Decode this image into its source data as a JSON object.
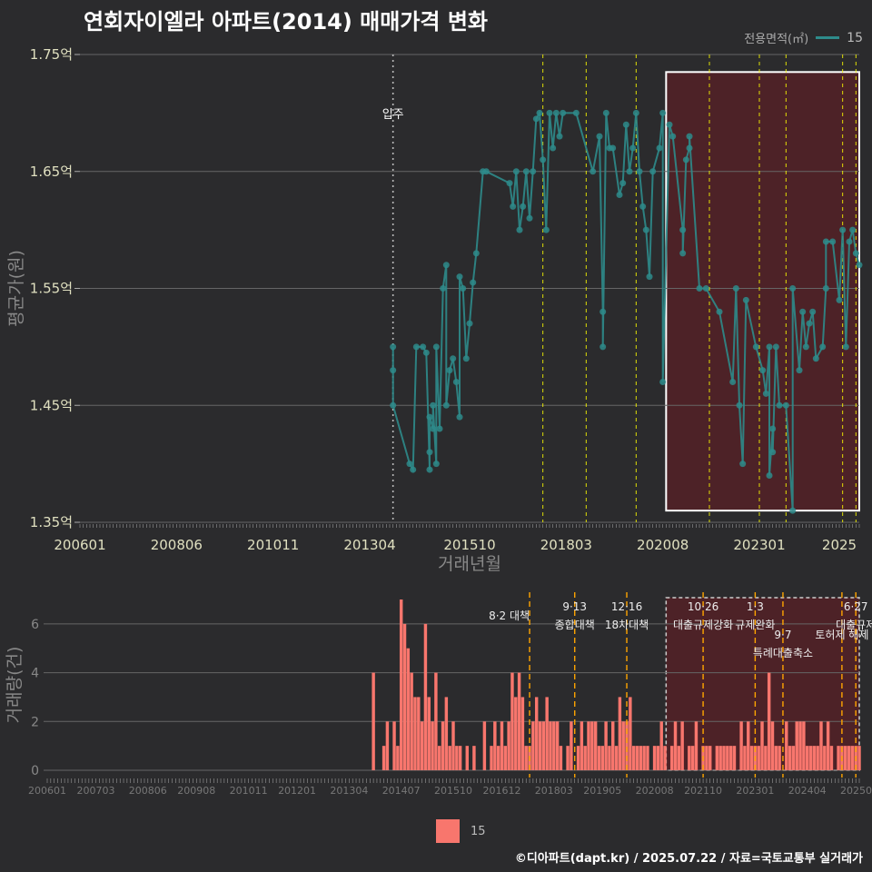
{
  "title": "연회자이엘라 아파트(2014) 매매가격 변화",
  "footer": "©디아파트(dapt.kr) / 2025.07.22 / 자료=국토교통부 실거래가",
  "legend_top": {
    "title": "전용면적(㎡)",
    "series": "15"
  },
  "legend_bottom": {
    "series": "15"
  },
  "colors": {
    "line": "#2e8b8b",
    "bar": "#f8766d",
    "highlight": "#5a2026",
    "vline": "#ffff00",
    "vline_bottom": "#ffa500"
  },
  "chart_data": [
    {
      "type": "line",
      "ylabel": "평균가(원)",
      "xlabel": "거래년월",
      "x_ticks": [
        "200601",
        "200806",
        "201011",
        "201304",
        "201510",
        "201803",
        "202008",
        "202301",
        "2025"
      ],
      "y_ticks": [
        "1.35억",
        "1.45억",
        "1.55억",
        "1.65억",
        "1.75억"
      ],
      "ylim": [
        1.35,
        1.75
      ],
      "xlim": [
        "2006-01",
        "2025-07"
      ],
      "annotations": [
        {
          "x": "2013-11",
          "label": "입주"
        }
      ],
      "policy_lines": [
        "2017-08",
        "2018-09",
        "2019-12",
        "2021-10",
        "2023-01",
        "2023-09",
        "2025-02",
        "2025-06"
      ],
      "highlight": {
        "from": "2020-09",
        "to": "2025-07",
        "ymin": 1.36,
        "ymax": 1.735
      },
      "series": [
        {
          "name": "15",
          "points": [
            [
              "2013-11",
              1.48
            ],
            [
              "2013-11",
              1.5
            ],
            [
              "2013-11",
              1.45
            ],
            [
              "2014-04",
              1.4
            ],
            [
              "2014-05",
              1.395
            ],
            [
              "2014-06",
              1.5
            ],
            [
              "2014-08",
              1.5
            ],
            [
              "2014-09",
              1.495
            ],
            [
              "2014-10",
              1.395
            ],
            [
              "2014-10",
              1.41
            ],
            [
              "2014-10",
              1.44
            ],
            [
              "2014-11",
              1.43
            ],
            [
              "2014-11",
              1.45
            ],
            [
              "2014-12",
              1.4
            ],
            [
              "2014-12",
              1.5
            ],
            [
              "2015-01",
              1.43
            ],
            [
              "2015-02",
              1.55
            ],
            [
              "2015-03",
              1.57
            ],
            [
              "2015-03",
              1.45
            ],
            [
              "2015-04",
              1.48
            ],
            [
              "2015-05",
              1.49
            ],
            [
              "2015-06",
              1.47
            ],
            [
              "2015-07",
              1.44
            ],
            [
              "2015-07",
              1.56
            ],
            [
              "2015-08",
              1.55
            ],
            [
              "2015-09",
              1.49
            ],
            [
              "2015-10",
              1.52
            ],
            [
              "2015-11",
              1.555
            ],
            [
              "2015-12",
              1.58
            ],
            [
              "2016-02",
              1.65
            ],
            [
              "2016-03",
              1.65
            ],
            [
              "2016-10",
              1.64
            ],
            [
              "2016-11",
              1.62
            ],
            [
              "2016-12",
              1.65
            ],
            [
              "2017-01",
              1.6
            ],
            [
              "2017-02",
              1.62
            ],
            [
              "2017-03",
              1.65
            ],
            [
              "2017-04",
              1.61
            ],
            [
              "2017-05",
              1.65
            ],
            [
              "2017-06",
              1.695
            ],
            [
              "2017-07",
              1.7
            ],
            [
              "2017-08",
              1.66
            ],
            [
              "2017-09",
              1.6
            ],
            [
              "2017-10",
              1.7
            ],
            [
              "2017-11",
              1.67
            ],
            [
              "2017-12",
              1.7
            ],
            [
              "2018-01",
              1.68
            ],
            [
              "2018-02",
              1.7
            ],
            [
              "2018-06",
              1.7
            ],
            [
              "2018-11",
              1.65
            ],
            [
              "2019-01",
              1.68
            ],
            [
              "2019-02",
              1.53
            ],
            [
              "2019-02",
              1.5
            ],
            [
              "2019-03",
              1.7
            ],
            [
              "2019-04",
              1.67
            ],
            [
              "2019-05",
              1.67
            ],
            [
              "2019-07",
              1.63
            ],
            [
              "2019-08",
              1.64
            ],
            [
              "2019-09",
              1.69
            ],
            [
              "2019-10",
              1.65
            ],
            [
              "2019-11",
              1.67
            ],
            [
              "2019-12",
              1.7
            ],
            [
              "2020-01",
              1.65
            ],
            [
              "2020-02",
              1.62
            ],
            [
              "2020-03",
              1.6
            ],
            [
              "2020-04",
              1.56
            ],
            [
              "2020-05",
              1.65
            ],
            [
              "2020-07",
              1.67
            ],
            [
              "2020-08",
              1.7
            ],
            [
              "2020-08",
              1.47
            ],
            [
              "2020-10",
              1.69
            ],
            [
              "2020-11",
              1.68
            ],
            [
              "2021-02",
              1.6
            ],
            [
              "2021-02",
              1.58
            ],
            [
              "2021-03",
              1.66
            ],
            [
              "2021-04",
              1.67
            ],
            [
              "2021-04",
              1.68
            ],
            [
              "2021-07",
              1.55
            ],
            [
              "2021-09",
              1.55
            ],
            [
              "2022-01",
              1.53
            ],
            [
              "2022-05",
              1.47
            ],
            [
              "2022-06",
              1.55
            ],
            [
              "2022-07",
              1.45
            ],
            [
              "2022-08",
              1.4
            ],
            [
              "2022-09",
              1.54
            ],
            [
              "2022-12",
              1.5
            ],
            [
              "2023-02",
              1.48
            ],
            [
              "2023-03",
              1.46
            ],
            [
              "2023-04",
              1.5
            ],
            [
              "2023-04",
              1.39
            ],
            [
              "2023-05",
              1.43
            ],
            [
              "2023-05",
              1.41
            ],
            [
              "2023-06",
              1.5
            ],
            [
              "2023-07",
              1.45
            ],
            [
              "2023-09",
              1.45
            ],
            [
              "2023-11",
              1.36
            ],
            [
              "2023-11",
              1.55
            ],
            [
              "2024-01",
              1.48
            ],
            [
              "2024-02",
              1.53
            ],
            [
              "2024-03",
              1.5
            ],
            [
              "2024-04",
              1.52
            ],
            [
              "2024-05",
              1.53
            ],
            [
              "2024-06",
              1.49
            ],
            [
              "2024-08",
              1.5
            ],
            [
              "2024-09",
              1.55
            ],
            [
              "2024-09",
              1.59
            ],
            [
              "2024-11",
              1.59
            ],
            [
              "2025-01",
              1.54
            ],
            [
              "2025-02",
              1.6
            ],
            [
              "2025-03",
              1.5
            ],
            [
              "2025-04",
              1.59
            ],
            [
              "2025-05",
              1.6
            ],
            [
              "2025-06",
              1.58
            ],
            [
              "2025-07",
              1.57
            ]
          ]
        }
      ]
    },
    {
      "type": "bar",
      "ylabel": "거래량(건)",
      "x_ticks": [
        "200601",
        "200703",
        "200806",
        "200908",
        "201011",
        "201201",
        "201304",
        "201407",
        "201510",
        "201612",
        "201803",
        "201905",
        "202008",
        "202110",
        "202301",
        "202404",
        "202507"
      ],
      "y_ticks": [
        "0",
        "2",
        "4",
        "6"
      ],
      "ylim": [
        0,
        7
      ],
      "xlim": [
        "2006-01",
        "2025-07"
      ],
      "policy_lines": [
        {
          "x": "2017-08",
          "label": "8·2 대책"
        },
        {
          "x": "2018-09",
          "label": "9·13\n종합대책"
        },
        {
          "x": "2019-12",
          "label": "12·16\n18차대책"
        },
        {
          "x": "2021-10",
          "label": "10·26\n대출규제강화"
        },
        {
          "x": "2023-01",
          "label": "1·3\n규제완화"
        },
        {
          "x": "2023-09",
          "label": "9·7\n특례대출축소"
        },
        {
          "x": "2025-02",
          "label": "토허제 해제"
        },
        {
          "x": "2025-06",
          "label": "6·27\n대출규제"
        }
      ],
      "highlight": {
        "from": "2020-09",
        "to": "2025-07"
      },
      "series": [
        {
          "name": "15",
          "values": [
            [
              "2013-11",
              4
            ],
            [
              "2014-02",
              1
            ],
            [
              "2014-03",
              2
            ],
            [
              "2014-05",
              2
            ],
            [
              "2014-06",
              1
            ],
            [
              "2014-07",
              7
            ],
            [
              "2014-08",
              6
            ],
            [
              "2014-09",
              5
            ],
            [
              "2014-10",
              4
            ],
            [
              "2014-11",
              3
            ],
            [
              "2014-12",
              3
            ],
            [
              "2015-01",
              2
            ],
            [
              "2015-02",
              6
            ],
            [
              "2015-03",
              3
            ],
            [
              "2015-04",
              2
            ],
            [
              "2015-05",
              4
            ],
            [
              "2015-06",
              1
            ],
            [
              "2015-07",
              2
            ],
            [
              "2015-08",
              3
            ],
            [
              "2015-09",
              1
            ],
            [
              "2015-10",
              2
            ],
            [
              "2015-11",
              1
            ],
            [
              "2015-12",
              1
            ],
            [
              "2016-02",
              1
            ],
            [
              "2016-04",
              1
            ],
            [
              "2016-07",
              2
            ],
            [
              "2016-09",
              1
            ],
            [
              "2016-10",
              2
            ],
            [
              "2016-11",
              1
            ],
            [
              "2016-12",
              2
            ],
            [
              "2017-01",
              1
            ],
            [
              "2017-02",
              2
            ],
            [
              "2017-03",
              4
            ],
            [
              "2017-04",
              3
            ],
            [
              "2017-05",
              4
            ],
            [
              "2017-06",
              3
            ],
            [
              "2017-07",
              1
            ],
            [
              "2017-08",
              1
            ],
            [
              "2017-09",
              2
            ],
            [
              "2017-10",
              3
            ],
            [
              "2017-11",
              2
            ],
            [
              "2017-12",
              2
            ],
            [
              "2018-01",
              3
            ],
            [
              "2018-02",
              2
            ],
            [
              "2018-03",
              2
            ],
            [
              "2018-04",
              2
            ],
            [
              "2018-05",
              1
            ],
            [
              "2018-07",
              1
            ],
            [
              "2018-08",
              2
            ],
            [
              "2018-10",
              1
            ],
            [
              "2018-11",
              2
            ],
            [
              "2018-12",
              1
            ],
            [
              "2019-01",
              2
            ],
            [
              "2019-02",
              2
            ],
            [
              "2019-03",
              2
            ],
            [
              "2019-04",
              1
            ],
            [
              "2019-05",
              1
            ],
            [
              "2019-06",
              2
            ],
            [
              "2019-07",
              1
            ],
            [
              "2019-08",
              2
            ],
            [
              "2019-09",
              1
            ],
            [
              "2019-10",
              3
            ],
            [
              "2019-11",
              2
            ],
            [
              "2019-12",
              2
            ],
            [
              "2020-01",
              3
            ],
            [
              "2020-02",
              1
            ],
            [
              "2020-03",
              1
            ],
            [
              "2020-04",
              1
            ],
            [
              "2020-05",
              1
            ],
            [
              "2020-06",
              1
            ],
            [
              "2020-08",
              1
            ],
            [
              "2020-09",
              1
            ],
            [
              "2020-10",
              2
            ],
            [
              "2020-11",
              1
            ],
            [
              "2021-01",
              1
            ],
            [
              "2021-02",
              2
            ],
            [
              "2021-03",
              1
            ],
            [
              "2021-04",
              2
            ],
            [
              "2021-06",
              1
            ],
            [
              "2021-07",
              1
            ],
            [
              "2021-08",
              2
            ],
            [
              "2021-10",
              1
            ],
            [
              "2021-11",
              1
            ],
            [
              "2021-12",
              1
            ],
            [
              "2022-02",
              1
            ],
            [
              "2022-03",
              1
            ],
            [
              "2022-04",
              1
            ],
            [
              "2022-05",
              1
            ],
            [
              "2022-06",
              1
            ],
            [
              "2022-07",
              1
            ],
            [
              "2022-09",
              2
            ],
            [
              "2022-10",
              1
            ],
            [
              "2022-11",
              2
            ],
            [
              "2022-12",
              1
            ],
            [
              "2023-01",
              1
            ],
            [
              "2023-02",
              1
            ],
            [
              "2023-03",
              2
            ],
            [
              "2023-04",
              1
            ],
            [
              "2023-05",
              4
            ],
            [
              "2023-06",
              2
            ],
            [
              "2023-07",
              1
            ],
            [
              "2023-08",
              1
            ],
            [
              "2023-10",
              2
            ],
            [
              "2023-11",
              1
            ],
            [
              "2023-12",
              1
            ],
            [
              "2024-01",
              2
            ],
            [
              "2024-02",
              2
            ],
            [
              "2024-03",
              2
            ],
            [
              "2024-04",
              1
            ],
            [
              "2024-05",
              1
            ],
            [
              "2024-06",
              1
            ],
            [
              "2024-07",
              1
            ],
            [
              "2024-08",
              2
            ],
            [
              "2024-09",
              1
            ],
            [
              "2024-10",
              2
            ],
            [
              "2024-11",
              1
            ],
            [
              "2025-01",
              1
            ],
            [
              "2025-02",
              1
            ],
            [
              "2025-03",
              1
            ],
            [
              "2025-04",
              1
            ],
            [
              "2025-05",
              1
            ],
            [
              "2025-06",
              1
            ],
            [
              "2025-07",
              1
            ]
          ]
        }
      ]
    }
  ]
}
